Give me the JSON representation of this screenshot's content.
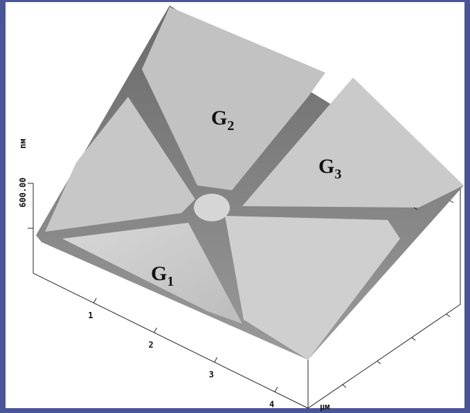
{
  "surface_labels": [
    {
      "main": "G",
      "sub": "1"
    },
    {
      "main": "G",
      "sub": "2"
    },
    {
      "main": "G",
      "sub": "3"
    }
  ],
  "z_axis": {
    "value": "600.00",
    "unit": "nм"
  },
  "x_axis": {
    "ticks": [
      "1",
      "2",
      "3",
      "4"
    ],
    "unit": "µм"
  }
}
